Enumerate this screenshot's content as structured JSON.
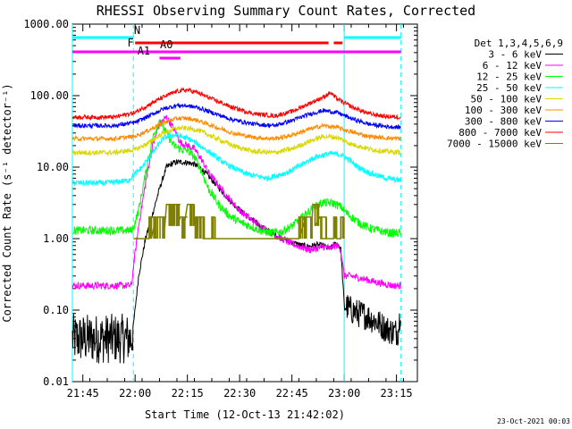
{
  "chart_data": {
    "type": "line",
    "title": "RHESSI Observing Summary Count Rates, Corrected",
    "xlabel": "Start Time (12-Oct-13 21:42:02)",
    "ylabel": "Corrected Count Rate (s⁻¹ detector⁻¹)",
    "x_unit": "minutes after 21:42:02",
    "xlim": [
      0,
      99
    ],
    "ylim": [
      0.01,
      1000
    ],
    "yscale": "log",
    "x_ticks": [
      {
        "x": 3,
        "label": "21:45"
      },
      {
        "x": 18,
        "label": "22:00"
      },
      {
        "x": 33,
        "label": "22:15"
      },
      {
        "x": 48,
        "label": "22:30"
      },
      {
        "x": 63,
        "label": "22:45"
      },
      {
        "x": 78,
        "label": "23:00"
      },
      {
        "x": 93,
        "label": "23:15"
      }
    ],
    "y_ticks": [
      {
        "y": 1000,
        "label": "1000.00"
      },
      {
        "y": 100,
        "label": "100.00"
      },
      {
        "y": 10,
        "label": "10.00"
      },
      {
        "y": 1,
        "label": "1.00"
      },
      {
        "y": 0.1,
        "label": "0.10"
      },
      {
        "y": 0.01,
        "label": "0.01"
      }
    ],
    "legend_title": "Det 1,3,4,5,6,9",
    "legend_position": "right",
    "series": [
      {
        "name": "3 - 6 keV",
        "color": "#000000",
        "x": [
          0,
          17,
          17.5,
          19,
          21,
          23,
          25,
          27,
          29,
          31,
          33,
          35,
          37,
          39,
          42,
          45,
          48,
          51,
          54,
          57,
          60,
          62,
          64,
          66,
          68,
          70,
          72,
          74,
          75,
          76,
          77,
          78,
          80,
          82,
          84,
          86,
          88,
          90,
          92,
          93.5,
          94.3
        ],
        "y": [
          0.04,
          0.04,
          0.06,
          0.3,
          1.0,
          2.2,
          5.0,
          10.0,
          11.5,
          11.8,
          11.6,
          11.0,
          9.5,
          7.5,
          5.2,
          3.5,
          2.5,
          1.9,
          1.5,
          1.2,
          1.02,
          0.92,
          0.86,
          0.8,
          0.78,
          0.82,
          0.8,
          0.72,
          0.82,
          0.85,
          0.75,
          0.12,
          0.1,
          0.09,
          0.085,
          0.075,
          0.065,
          0.055,
          0.05,
          0.05,
          0.12
        ]
      },
      {
        "name": "6 - 12 keV",
        "color": "#ff00ff",
        "x": [
          0,
          17,
          17.5,
          19,
          21,
          23,
          25,
          27,
          29,
          31,
          33,
          35,
          37,
          39,
          42,
          45,
          48,
          51,
          54,
          57,
          60,
          63,
          66,
          68,
          70,
          72,
          74,
          75,
          76,
          77,
          78,
          80,
          84,
          88,
          92,
          94.3
        ],
        "y": [
          0.22,
          0.22,
          0.4,
          1.5,
          6,
          20,
          40,
          50,
          35,
          22,
          20,
          18,
          13,
          8.5,
          5.5,
          3.6,
          2.5,
          1.9,
          1.5,
          1.2,
          1.0,
          0.85,
          0.75,
          0.7,
          0.72,
          0.78,
          0.72,
          0.8,
          0.8,
          0.7,
          0.3,
          0.3,
          0.27,
          0.24,
          0.22,
          0.22
        ]
      },
      {
        "name": "12 - 25 keV",
        "color": "#00ff00",
        "x": [
          0,
          17,
          17.5,
          19,
          21,
          23,
          25,
          27,
          29,
          31,
          33,
          35,
          37,
          39,
          42,
          45,
          48,
          51,
          54,
          57,
          60,
          63,
          66,
          69,
          72,
          75,
          77,
          79,
          82,
          85,
          88,
          91,
          94.3
        ],
        "y": [
          1.3,
          1.3,
          1.4,
          2.5,
          8,
          25,
          45,
          30,
          20,
          18,
          17,
          14,
          9,
          5,
          3,
          2.1,
          1.7,
          1.5,
          1.3,
          1.2,
          1.25,
          1.5,
          2.0,
          2.7,
          3.2,
          3.1,
          2.8,
          2.2,
          1.7,
          1.4,
          1.3,
          1.2,
          1.2
        ]
      },
      {
        "name": "25 - 50 keV",
        "color": "#00ffff",
        "x": [
          0,
          10,
          16,
          20,
          23,
          26,
          28,
          30,
          32,
          34,
          38,
          44,
          50,
          56,
          62,
          66,
          70,
          74,
          77,
          79,
          82,
          86,
          90,
          94.3
        ],
        "y": [
          6,
          6,
          6.5,
          10,
          16,
          25,
          28,
          28,
          26,
          24,
          18,
          11,
          8,
          7,
          8.5,
          11,
          14,
          15.5,
          15,
          13,
          10,
          8,
          7,
          6.5
        ]
      },
      {
        "name": "50 - 100 keV",
        "color": "#d8d800",
        "x": [
          0,
          12,
          18,
          22,
          26,
          30,
          33,
          36,
          40,
          46,
          52,
          58,
          63,
          68,
          72,
          76,
          80,
          85,
          90,
          94.3
        ],
        "y": [
          16,
          16,
          17.5,
          22,
          30,
          35,
          35,
          33,
          27,
          20,
          16.5,
          16,
          18,
          23,
          27,
          26,
          21,
          18,
          16.5,
          16
        ]
      },
      {
        "name": "100 - 300 keV",
        "color": "#ff8c00",
        "x": [
          0,
          12,
          18,
          22,
          26,
          30,
          33,
          36,
          40,
          46,
          52,
          58,
          63,
          68,
          72,
          76,
          80,
          85,
          90,
          94.3
        ],
        "y": [
          25,
          25,
          27,
          33,
          42,
          48,
          48,
          45,
          38,
          30,
          26,
          25,
          28,
          34,
          38,
          36,
          31,
          27,
          25.5,
          25
        ]
      },
      {
        "name": "300 - 800 keV",
        "color": "#0000ff",
        "x": [
          0,
          12,
          18,
          22,
          26,
          30,
          33,
          36,
          40,
          46,
          52,
          58,
          63,
          68,
          72,
          76,
          80,
          85,
          90,
          94.3
        ],
        "y": [
          38,
          38,
          42,
          52,
          65,
          73,
          72,
          68,
          58,
          46,
          40,
          38,
          45,
          55,
          62,
          58,
          48,
          40,
          37,
          36
        ]
      },
      {
        "name": "800 - 7000 keV",
        "color": "#ff0000",
        "x": [
          0,
          12,
          18,
          22,
          26,
          30,
          33,
          36,
          40,
          46,
          52,
          58,
          63,
          68,
          72,
          74,
          76,
          80,
          85,
          90,
          94.3
        ],
        "y": [
          50,
          50,
          58,
          75,
          95,
          115,
          120,
          110,
          90,
          68,
          56,
          52,
          60,
          78,
          95,
          110,
          90,
          70,
          56,
          51,
          50
        ]
      },
      {
        "name": "7000 - 15000 keV",
        "color": "#808000",
        "x": [
          17.5,
          19,
          21,
          22,
          24,
          26,
          27,
          29,
          31,
          33,
          35,
          36,
          38,
          40,
          41,
          43,
          47,
          52,
          58,
          60,
          63,
          65,
          67,
          69,
          71,
          73,
          75,
          76,
          77,
          78
        ],
        "y": [
          1.0,
          1.0,
          1.0,
          2.0,
          2.0,
          2.0,
          3.0,
          3.0,
          2.0,
          3.0,
          2.0,
          2.0,
          1.0,
          2.0,
          1.0,
          1.0,
          1.0,
          1.0,
          1.0,
          1.0,
          1.0,
          2.0,
          2.0,
          3.0,
          2.0,
          1.0,
          2.0,
          1.0,
          2.0,
          1.0
        ]
      }
    ],
    "states": [
      {
        "label": "N",
        "color": "#00ffff",
        "segments": [
          [
            0,
            17.5
          ],
          [
            78,
            94.3
          ]
        ],
        "boundary_lines_x": [
          0,
          17.5,
          78,
          94.3
        ]
      },
      {
        "label": "F",
        "color": "#ff0000",
        "segments": [
          [
            18,
            73.5
          ],
          [
            75,
            77.5
          ]
        ]
      },
      {
        "label": "A0",
        "color": "#ff00ff",
        "segments": [
          [
            0,
            94.3
          ]
        ]
      },
      {
        "label": "A1",
        "color": "#ff00ff",
        "segments": [
          [
            25,
            31
          ]
        ]
      }
    ]
  },
  "footer": {
    "timestamp": "23-Oct-2021 00:03"
  }
}
